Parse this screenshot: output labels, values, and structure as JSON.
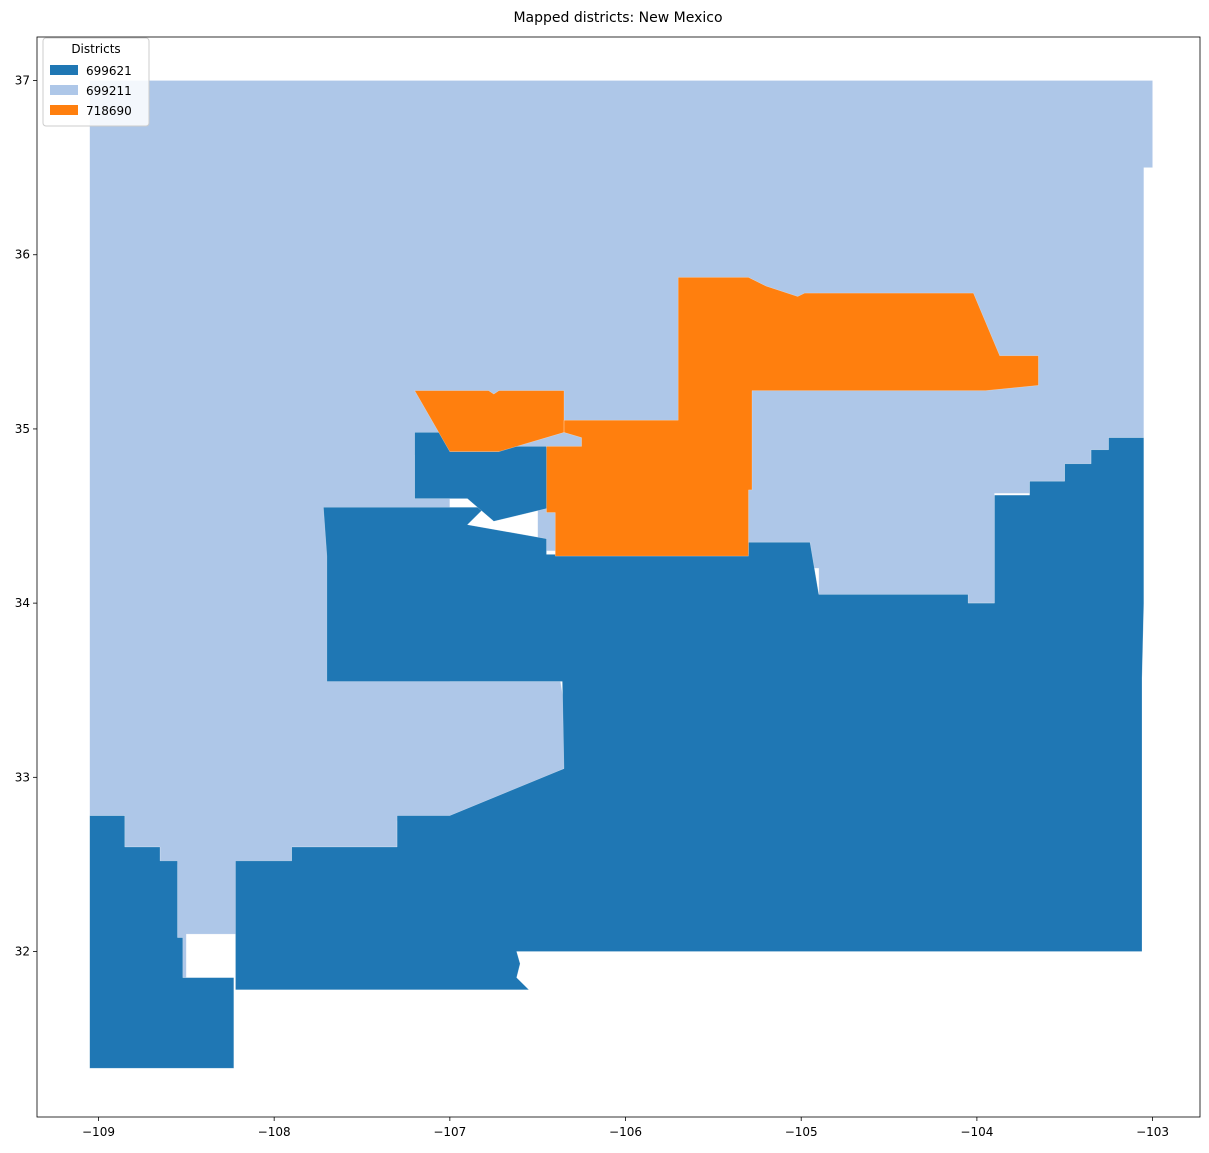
{
  "chart_data": {
    "type": "map",
    "title": "Mapped districts: New Mexico",
    "xlabel": "",
    "ylabel": "",
    "xlim": [
      -109.35,
      -102.73
    ],
    "ylim": [
      31.05,
      37.25
    ],
    "xticks": [
      {
        "value": -109,
        "label": "−109"
      },
      {
        "value": -108,
        "label": "−108"
      },
      {
        "value": -107,
        "label": "−107"
      },
      {
        "value": -106,
        "label": "−106"
      },
      {
        "value": -105,
        "label": "−105"
      },
      {
        "value": -104,
        "label": "−104"
      },
      {
        "value": -103,
        "label": "−103"
      }
    ],
    "yticks": [
      {
        "value": 32,
        "label": "32"
      },
      {
        "value": 33,
        "label": "33"
      },
      {
        "value": 34,
        "label": "34"
      },
      {
        "value": 35,
        "label": "35"
      },
      {
        "value": 36,
        "label": "36"
      },
      {
        "value": 37,
        "label": "37"
      }
    ],
    "legend": {
      "title": "Districts",
      "placement": "upper-left",
      "entries": [
        {
          "label": "699621",
          "color": "#1f77b4"
        },
        {
          "label": "699211",
          "color": "#aec7e8"
        },
        {
          "label": "718690",
          "color": "#ff7f0e"
        }
      ]
    },
    "regions": [
      {
        "district": "699211",
        "coords": [
          [
            -109.05,
            37.0
          ],
          [
            -103.0,
            37.0
          ],
          [
            -103.0,
            36.5
          ],
          [
            -103.05,
            36.5
          ],
          [
            -103.05,
            34.95
          ],
          [
            -103.25,
            34.95
          ],
          [
            -103.25,
            34.88
          ],
          [
            -103.35,
            34.88
          ],
          [
            -103.35,
            34.8
          ],
          [
            -103.5,
            34.8
          ],
          [
            -103.5,
            34.7
          ],
          [
            -103.7,
            34.7
          ],
          [
            -103.7,
            34.63
          ],
          [
            -103.9,
            34.63
          ],
          [
            -103.9,
            34.0
          ],
          [
            -104.05,
            34.0
          ],
          [
            -104.05,
            34.05
          ],
          [
            -104.9,
            34.05
          ],
          [
            -104.9,
            34.2
          ],
          [
            -104.95,
            34.2
          ],
          [
            -104.95,
            34.35
          ],
          [
            -105.35,
            34.35
          ],
          [
            -105.35,
            34.3
          ],
          [
            -106.5,
            34.3
          ],
          [
            -106.5,
            34.55
          ],
          [
            -106.77,
            34.55
          ],
          [
            -106.9,
            34.6
          ],
          [
            -107.2,
            34.6
          ],
          [
            -107.2,
            34.85
          ],
          [
            -107.0,
            34.85
          ],
          [
            -107.0,
            33.55
          ],
          [
            -106.37,
            33.55
          ],
          [
            -106.3,
            33.1
          ],
          [
            -106.35,
            33.05
          ],
          [
            -107.0,
            32.75
          ],
          [
            -107.3,
            32.75
          ],
          [
            -107.3,
            32.6
          ],
          [
            -107.9,
            32.6
          ],
          [
            -107.9,
            32.5
          ],
          [
            -108.2,
            32.5
          ],
          [
            -108.2,
            32.1
          ],
          [
            -108.5,
            32.1
          ],
          [
            -108.5,
            31.85
          ],
          [
            -108.5,
            31.85
          ],
          [
            -108.55,
            31.85
          ],
          [
            -108.55,
            32.1
          ],
          [
            -108.55,
            32.5
          ],
          [
            -108.65,
            32.5
          ],
          [
            -108.65,
            32.6
          ],
          [
            -108.85,
            32.6
          ],
          [
            -108.85,
            32.78
          ],
          [
            -109.05,
            32.78
          ]
        ]
      },
      {
        "district": "699621",
        "coords": [
          [
            -109.05,
            32.78
          ],
          [
            -108.85,
            32.78
          ],
          [
            -108.85,
            32.6
          ],
          [
            -108.65,
            32.6
          ],
          [
            -108.65,
            32.52
          ],
          [
            -108.55,
            32.52
          ],
          [
            -108.55,
            32.08
          ],
          [
            -108.52,
            32.08
          ],
          [
            -108.52,
            31.85
          ],
          [
            -108.23,
            31.85
          ],
          [
            -108.23,
            31.33
          ],
          [
            -109.05,
            31.33
          ]
        ]
      },
      {
        "district": "699621",
        "coords": [
          [
            -108.22,
            32.52
          ],
          [
            -107.9,
            32.52
          ],
          [
            -107.9,
            32.6
          ],
          [
            -107.3,
            32.6
          ],
          [
            -107.3,
            32.78
          ],
          [
            -107.0,
            32.78
          ],
          [
            -106.35,
            33.05
          ],
          [
            -106.36,
            33.55
          ],
          [
            -107.7,
            33.55
          ],
          [
            -107.7,
            34.27
          ],
          [
            -107.72,
            34.55
          ],
          [
            -107.2,
            34.55
          ],
          [
            -106.8,
            34.55
          ],
          [
            -106.9,
            34.45
          ],
          [
            -106.45,
            34.37
          ],
          [
            -106.45,
            34.28
          ],
          [
            -105.3,
            34.28
          ],
          [
            -105.3,
            34.35
          ],
          [
            -104.95,
            34.35
          ],
          [
            -104.9,
            34.05
          ],
          [
            -104.05,
            34.05
          ],
          [
            -104.05,
            34.0
          ],
          [
            -103.9,
            34.0
          ],
          [
            -103.9,
            34.62
          ],
          [
            -103.7,
            34.62
          ],
          [
            -103.7,
            34.7
          ],
          [
            -103.5,
            34.7
          ],
          [
            -103.5,
            34.8
          ],
          [
            -103.35,
            34.8
          ],
          [
            -103.35,
            34.88
          ],
          [
            -103.25,
            34.88
          ],
          [
            -103.25,
            34.95
          ],
          [
            -103.05,
            34.95
          ],
          [
            -103.05,
            34.0
          ],
          [
            -103.06,
            33.57
          ],
          [
            -103.06,
            32.0
          ],
          [
            -106.37,
            32.0
          ],
          [
            -106.62,
            32.0
          ],
          [
            -106.6,
            31.93
          ],
          [
            -106.62,
            31.85
          ],
          [
            -106.55,
            31.78
          ],
          [
            -106.62,
            31.78
          ],
          [
            -108.22,
            31.78
          ]
        ]
      },
      {
        "district": "699621",
        "coords": [
          [
            -107.2,
            34.98
          ],
          [
            -107.0,
            34.98
          ],
          [
            -107.0,
            34.87
          ],
          [
            -106.72,
            34.87
          ],
          [
            -106.68,
            34.9
          ],
          [
            -106.45,
            34.9
          ],
          [
            -106.42,
            34.55
          ],
          [
            -106.75,
            34.47
          ],
          [
            -106.9,
            34.6
          ],
          [
            -107.2,
            34.6
          ]
        ]
      },
      {
        "district": "718690",
        "coords": [
          [
            -107.2,
            35.22
          ],
          [
            -106.78,
            35.22
          ],
          [
            -106.75,
            35.2
          ],
          [
            -106.72,
            35.22
          ],
          [
            -106.35,
            35.22
          ],
          [
            -106.35,
            34.98
          ],
          [
            -106.25,
            34.95
          ],
          [
            -106.25,
            34.9
          ],
          [
            -106.45,
            34.9
          ],
          [
            -106.45,
            34.52
          ],
          [
            -106.4,
            34.52
          ],
          [
            -106.4,
            34.27
          ],
          [
            -105.3,
            34.27
          ],
          [
            -105.3,
            34.6
          ],
          [
            -105.3,
            34.65
          ],
          [
            -105.28,
            34.65
          ],
          [
            -105.28,
            35.22
          ],
          [
            -103.95,
            35.22
          ],
          [
            -103.65,
            35.25
          ],
          [
            -103.65,
            35.42
          ],
          [
            -103.87,
            35.42
          ],
          [
            -104.02,
            35.78
          ],
          [
            -104.5,
            35.78
          ],
          [
            -104.9,
            35.78
          ],
          [
            -104.98,
            35.78
          ],
          [
            -105.02,
            35.76
          ],
          [
            -105.2,
            35.82
          ],
          [
            -105.3,
            35.87
          ],
          [
            -105.7,
            35.87
          ],
          [
            -105.7,
            35.05
          ],
          [
            -106.35,
            35.05
          ],
          [
            -106.35,
            34.98
          ],
          [
            -106.72,
            34.87
          ],
          [
            -106.85,
            34.87
          ],
          [
            -106.85,
            34.87
          ],
          [
            -107.0,
            34.87
          ]
        ]
      }
    ]
  }
}
